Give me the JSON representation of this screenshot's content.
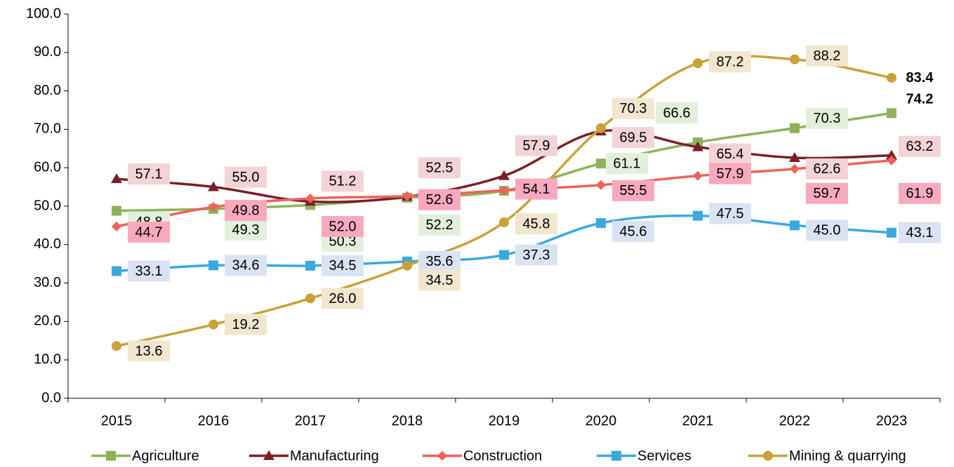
{
  "chart_data": {
    "type": "line",
    "categories": [
      "2015",
      "2016",
      "2017",
      "2018",
      "2019",
      "2020",
      "2021",
      "2022",
      "2023"
    ],
    "ylim": [
      0,
      100
    ],
    "yticks": [
      {
        "value": 0,
        "label": "0.0"
      },
      {
        "value": 10,
        "label": "10.0"
      },
      {
        "value": 20,
        "label": "20.0"
      },
      {
        "value": 30,
        "label": "30.0"
      },
      {
        "value": 40,
        "label": "40.0"
      },
      {
        "value": 50,
        "label": "50.0"
      },
      {
        "value": 60,
        "label": "60.0"
      },
      {
        "value": 70,
        "label": "70.0"
      },
      {
        "value": 80,
        "label": "80.0"
      },
      {
        "value": 90,
        "label": "90.0"
      },
      {
        "value": 100,
        "label": "100.0"
      }
    ],
    "grid": false,
    "legend": "bottom",
    "smooth": true,
    "series": [
      {
        "name": "Agriculture",
        "color": "#8db35a",
        "label_color": "#e2efda",
        "marker": "square",
        "bold_last": true,
        "values": [
          48.8,
          49.3,
          50.3,
          52.2,
          54.0,
          61.1,
          66.6,
          70.3,
          74.2
        ],
        "value_labels": [
          "48.8",
          "49.3",
          "50.3",
          "52.2",
          null,
          "61.1",
          "66.6",
          "70.3",
          "74.2"
        ]
      },
      {
        "name": "Manufacturing",
        "color": "#7a1f26",
        "label_color": "#f3d3d6",
        "marker": "triangle",
        "bold_last": false,
        "values": [
          57.1,
          55.0,
          51.2,
          52.5,
          57.9,
          69.5,
          65.4,
          62.6,
          63.2
        ],
        "value_labels": [
          "57.1",
          "55.0",
          "51.2",
          "52.5",
          "57.9",
          "69.5",
          "65.4",
          "62.6",
          "63.2"
        ]
      },
      {
        "name": "Construction",
        "color": "#f0605d",
        "label_color": "#f9a9bd",
        "marker": "diamond",
        "bold_last": false,
        "values": [
          44.7,
          49.8,
          52.0,
          52.6,
          54.1,
          55.5,
          57.9,
          59.7,
          61.9
        ],
        "value_labels": [
          "44.7",
          "49.8",
          "52.0",
          "52.6",
          "54.1",
          "55.5",
          "57.9",
          "59.7",
          "61.9"
        ]
      },
      {
        "name": "Services",
        "color": "#3aa9df",
        "label_color": "#dae3f3",
        "marker": "square",
        "bold_last": false,
        "values": [
          33.1,
          34.6,
          34.5,
          35.6,
          37.3,
          45.6,
          47.5,
          45.0,
          43.1
        ],
        "value_labels": [
          "33.1",
          "34.6",
          "34.5",
          "35.6",
          "37.3",
          "45.6",
          "47.5",
          "45.0",
          "43.1"
        ]
      },
      {
        "name": "Mining & quarrying",
        "color": "#c9a137",
        "label_color": "#f2e6cf",
        "marker": "circle",
        "bold_last": true,
        "values": [
          13.6,
          19.2,
          26.0,
          34.5,
          45.8,
          70.3,
          87.2,
          88.2,
          83.4
        ],
        "value_labels": [
          "13.6",
          "19.2",
          "26.0",
          "34.5",
          "45.8",
          "70.3",
          "87.2",
          "88.2",
          "83.4"
        ]
      }
    ]
  }
}
